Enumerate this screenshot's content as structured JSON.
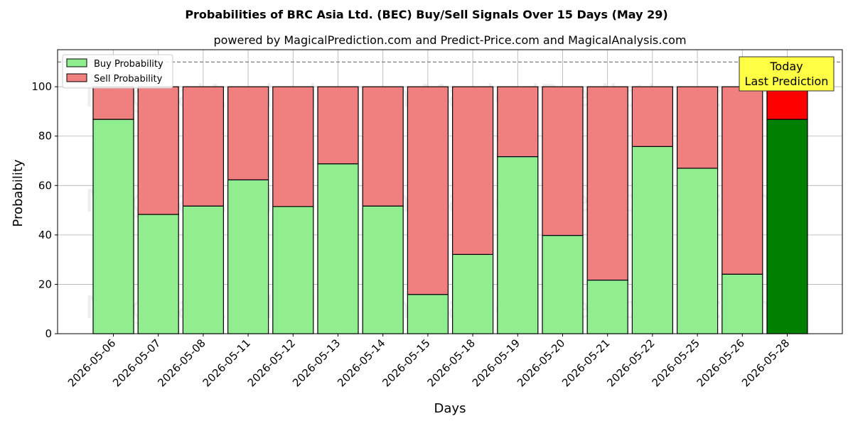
{
  "chart_data": {
    "type": "bar",
    "title": "Probabilities of BRC Asia Ltd. (BEC) Buy/Sell Signals Over 15 Days (May 29)",
    "subtitle": "powered by MagicalPrediction.com and Predict-Price.com and MagicalAnalysis.com",
    "xlabel": "Days",
    "ylabel": "Probability",
    "ylim": [
      0,
      115
    ],
    "yticks": [
      0,
      20,
      40,
      60,
      80,
      100
    ],
    "reference_line": 110,
    "grid": true,
    "legend_position": "top-left",
    "categories": [
      "2026-05-06",
      "2026-05-07",
      "2026-05-08",
      "2026-05-11",
      "2026-05-12",
      "2026-05-13",
      "2026-05-14",
      "2026-05-15",
      "2026-05-18",
      "2026-05-19",
      "2026-05-20",
      "2026-05-21",
      "2026-05-22",
      "2026-05-25",
      "2026-05-26",
      "2026-05-28"
    ],
    "series": [
      {
        "name": "Buy Probability",
        "color": "#90ee90",
        "values": [
          86.8,
          48.3,
          51.7,
          62.3,
          51.5,
          68.8,
          51.7,
          15.9,
          32.1,
          71.7,
          39.8,
          21.7,
          75.8,
          67.0,
          24.1,
          86.8
        ]
      },
      {
        "name": "Sell Probability",
        "color": "#f08080",
        "values": [
          13.2,
          51.7,
          48.3,
          37.7,
          48.5,
          31.2,
          48.3,
          84.1,
          67.9,
          28.3,
          60.2,
          78.3,
          24.2,
          33.0,
          75.9,
          13.2
        ]
      }
    ],
    "highlight": {
      "index": 15,
      "buy_color": "#008000",
      "sell_color": "#ff0000"
    },
    "annotation": {
      "lines": [
        "Today",
        "Last Prediction"
      ],
      "background": "#ffff44"
    },
    "watermarks": [
      "MagicalAnalysis.com",
      "MagicalPrediction.com"
    ]
  }
}
